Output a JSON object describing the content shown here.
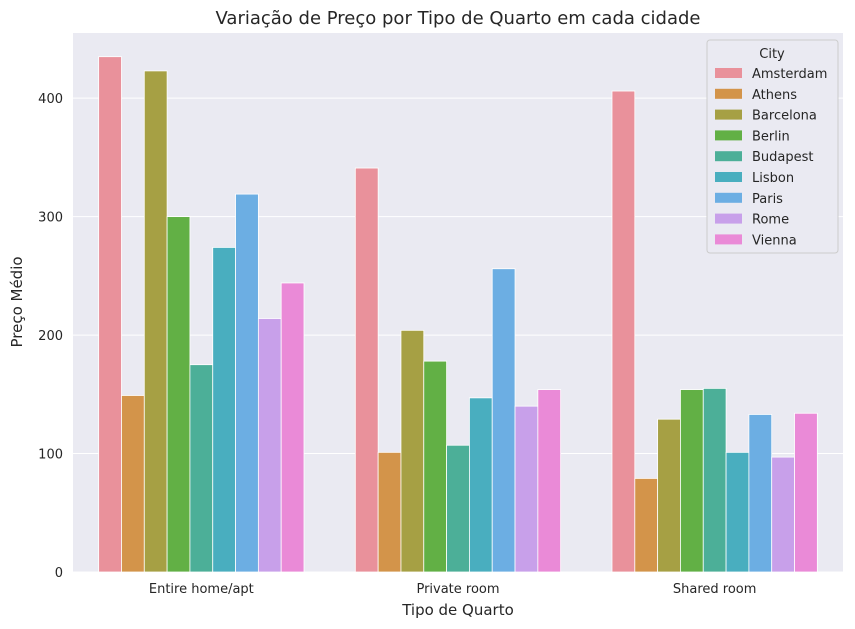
{
  "chart_data": {
    "type": "bar",
    "title": "Variação de Preço por Tipo de Quarto em cada cidade",
    "xlabel": "Tipo de Quarto",
    "ylabel": "Preço Médio",
    "categories": [
      "Entire home/apt",
      "Private room",
      "Shared room"
    ],
    "ylim": [
      0,
      455
    ],
    "yticks": [
      "0",
      "100",
      "200",
      "300",
      "400"
    ],
    "grid": true,
    "legend": {
      "title": "City",
      "placement": "top-right"
    },
    "series": [
      {
        "name": "Amsterdam",
        "color": "#e9919b",
        "values": [
          435,
          341,
          406
        ]
      },
      {
        "name": "Athens",
        "color": "#d3944a",
        "values": [
          149,
          101,
          79
        ]
      },
      {
        "name": "Barcelona",
        "color": "#a6a044",
        "values": [
          423,
          204,
          129
        ]
      },
      {
        "name": "Berlin",
        "color": "#62b045",
        "values": [
          300,
          178,
          154
        ]
      },
      {
        "name": "Budapest",
        "color": "#4caf98",
        "values": [
          175,
          107,
          155
        ]
      },
      {
        "name": "Lisbon",
        "color": "#49aebf",
        "values": [
          274,
          147,
          101
        ]
      },
      {
        "name": "Paris",
        "color": "#6caee3",
        "values": [
          319,
          256,
          133
        ]
      },
      {
        "name": "Rome",
        "color": "#c8a0ea",
        "values": [
          214,
          140,
          97
        ]
      },
      {
        "name": "Vienna",
        "color": "#ea8ad7",
        "values": [
          244,
          154,
          134
        ]
      }
    ]
  }
}
